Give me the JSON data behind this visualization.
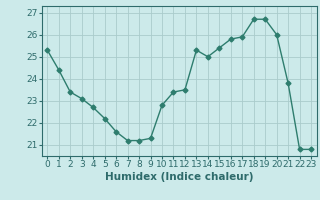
{
  "x": [
    0,
    1,
    2,
    3,
    4,
    5,
    6,
    7,
    8,
    9,
    10,
    11,
    12,
    13,
    14,
    15,
    16,
    17,
    18,
    19,
    20,
    21,
    22,
    23
  ],
  "y": [
    25.3,
    24.4,
    23.4,
    23.1,
    22.7,
    22.2,
    21.6,
    21.2,
    21.2,
    21.3,
    22.8,
    23.4,
    23.5,
    25.3,
    25.0,
    25.4,
    25.8,
    25.9,
    26.7,
    26.7,
    26.0,
    23.8,
    20.8,
    20.8
  ],
  "line_color": "#2e7d6e",
  "marker": "D",
  "markersize": 2.5,
  "bg_color": "#cceaea",
  "grid_color": "#aacccc",
  "xlabel": "Humidex (Indice chaleur)",
  "ylim": [
    20.5,
    27.3
  ],
  "xlim": [
    -0.5,
    23.5
  ],
  "yticks": [
    21,
    22,
    23,
    24,
    25,
    26,
    27
  ],
  "xticks": [
    0,
    1,
    2,
    3,
    4,
    5,
    6,
    7,
    8,
    9,
    10,
    11,
    12,
    13,
    14,
    15,
    16,
    17,
    18,
    19,
    20,
    21,
    22,
    23
  ],
  "font_color": "#2e6b6b",
  "tick_fontsize": 6.5,
  "label_fontsize": 7.5
}
